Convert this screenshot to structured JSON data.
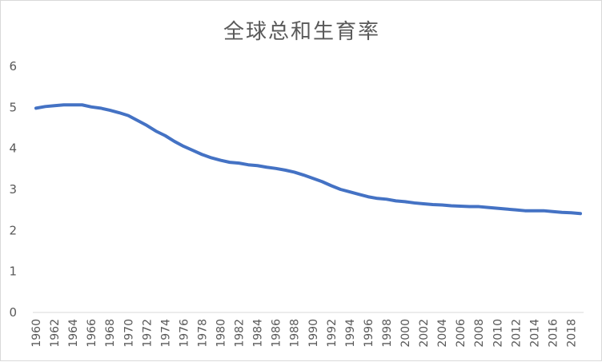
{
  "chart_data": {
    "type": "line",
    "title": "全球总和生育率",
    "xlabel": "",
    "ylabel": "",
    "ylim": [
      0,
      6
    ],
    "yticks": [
      0,
      1,
      2,
      3,
      4,
      5,
      6
    ],
    "x_tick_labels": [
      "1960",
      "1962",
      "1964",
      "1966",
      "1968",
      "1970",
      "1972",
      "1974",
      "1976",
      "1978",
      "1980",
      "1982",
      "1984",
      "1986",
      "1988",
      "1990",
      "1992",
      "1994",
      "1996",
      "1998",
      "2000",
      "2002",
      "2004",
      "2006",
      "2008",
      "2010",
      "2012",
      "2014",
      "2016",
      "2018"
    ],
    "x": [
      1960,
      1961,
      1962,
      1963,
      1964,
      1965,
      1966,
      1967,
      1968,
      1969,
      1970,
      1971,
      1972,
      1973,
      1974,
      1975,
      1976,
      1977,
      1978,
      1979,
      1980,
      1981,
      1982,
      1983,
      1984,
      1985,
      1986,
      1987,
      1988,
      1989,
      1990,
      1991,
      1992,
      1993,
      1994,
      1995,
      1996,
      1997,
      1998,
      1999,
      2000,
      2001,
      2002,
      2003,
      2004,
      2005,
      2006,
      2007,
      2008,
      2009,
      2010,
      2011,
      2012,
      2013,
      2014,
      2015,
      2016,
      2017,
      2018,
      2019
    ],
    "series": [
      {
        "color": "#4472c4",
        "values": [
          4.98,
          5.02,
          5.04,
          5.06,
          5.06,
          5.06,
          5.01,
          4.98,
          4.93,
          4.87,
          4.8,
          4.68,
          4.56,
          4.42,
          4.31,
          4.17,
          4.05,
          3.95,
          3.85,
          3.77,
          3.71,
          3.66,
          3.64,
          3.6,
          3.58,
          3.54,
          3.51,
          3.47,
          3.42,
          3.35,
          3.27,
          3.19,
          3.09,
          3.0,
          2.94,
          2.88,
          2.82,
          2.78,
          2.76,
          2.72,
          2.7,
          2.67,
          2.65,
          2.63,
          2.62,
          2.6,
          2.59,
          2.58,
          2.58,
          2.56,
          2.54,
          2.52,
          2.5,
          2.48,
          2.48,
          2.48,
          2.46,
          2.44,
          2.43,
          2.41
        ]
      }
    ],
    "grid": false,
    "legend": "none"
  }
}
